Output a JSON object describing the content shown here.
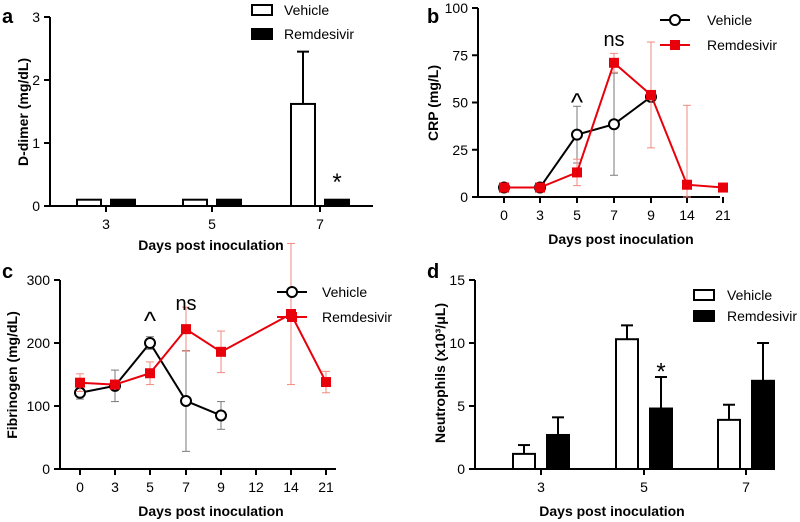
{
  "colors": {
    "vehicle": "#000000",
    "remdesivir": "#e8000b",
    "axis": "#000000"
  },
  "chart_data": [
    {
      "panel": "a",
      "type": "bar",
      "ylabel": "D-dimer (mg/dL)",
      "xlabel": "Days post inoculation",
      "categories": [
        "3",
        "5",
        "7"
      ],
      "ylim": [
        0,
        3
      ],
      "yticks": [
        "0",
        "1",
        "2",
        "3"
      ],
      "series": [
        {
          "name": "Vehicle",
          "fill": "white",
          "values": [
            0.1,
            0.1,
            1.62
          ],
          "errors": [
            0,
            0,
            0.83
          ]
        },
        {
          "name": "Remdesivir",
          "fill": "black",
          "values": [
            0.1,
            0.1,
            0.1
          ],
          "errors": [
            0,
            0,
            0
          ]
        }
      ],
      "annotations": [
        {
          "text": "*",
          "category": 2,
          "series": 1,
          "y": 0.48
        }
      ]
    },
    {
      "panel": "b",
      "type": "line",
      "ylabel": "CRP (mg/L)",
      "xlabel": "Days post inoculation",
      "categories": [
        "0",
        "3",
        "5",
        "7",
        "9",
        "14",
        "21"
      ],
      "ylim": [
        0,
        100
      ],
      "yticks": [
        "0",
        "25",
        "50",
        "75",
        "100"
      ],
      "series": [
        {
          "name": "Vehicle",
          "marker": "circle",
          "points": [
            [
              0,
              5,
              0
            ],
            [
              1,
              5,
              0
            ],
            [
              2,
              33,
              15
            ],
            [
              3,
              38.5,
              27
            ],
            [
              4,
              53,
              0
            ]
          ]
        },
        {
          "name": "Remdesivir",
          "marker": "square",
          "points": [
            [
              0,
              5,
              0
            ],
            [
              1,
              5,
              0
            ],
            [
              2,
              13,
              7
            ],
            [
              3,
              71,
              5
            ],
            [
              4,
              54,
              28
            ],
            [
              5,
              6.5,
              42
            ],
            [
              6,
              5,
              0
            ]
          ]
        }
      ],
      "annotations": [
        {
          "text": "^",
          "x": 2,
          "y": 55
        },
        {
          "text": "ns",
          "x": 3,
          "y": 83
        }
      ]
    },
    {
      "panel": "c",
      "type": "line",
      "ylabel": "Fibrinogen (mg/dL)",
      "xlabel": "Days post inoculation",
      "categories": [
        "0",
        "3",
        "5",
        "7",
        "9",
        "12",
        "14",
        "21"
      ],
      "ylim": [
        0,
        300
      ],
      "yticks": [
        "0",
        "100",
        "200",
        "300"
      ],
      "series": [
        {
          "name": "Vehicle",
          "marker": "circle",
          "points": [
            [
              0,
              121,
              10
            ],
            [
              1,
              132,
              25
            ],
            [
              2,
              200,
              10
            ],
            [
              3,
              108,
              80
            ],
            [
              4,
              85,
              22
            ]
          ]
        },
        {
          "name": "Remdesivir",
          "marker": "square",
          "points": [
            [
              0,
              137,
              14
            ],
            [
              1,
              134,
              5
            ],
            [
              2,
              152,
              18
            ],
            [
              3,
              222,
              35
            ],
            [
              4,
              186,
              33
            ],
            [
              6,
              246,
              112
            ],
            [
              7,
              138,
              17
            ]
          ]
        }
      ],
      "annotations": [
        {
          "text": "^",
          "x": 2,
          "y": 250
        },
        {
          "text": "ns",
          "x": 3,
          "y": 262
        }
      ]
    },
    {
      "panel": "d",
      "type": "bar",
      "ylabel": "Neutrophils (x10³/μL)",
      "xlabel": "Days post inoculation",
      "categories": [
        "3",
        "5",
        "7"
      ],
      "ylim": [
        0,
        15
      ],
      "yticks": [
        "0",
        "5",
        "10",
        "15"
      ],
      "series": [
        {
          "name": "Vehicle",
          "fill": "white",
          "values": [
            1.2,
            10.3,
            3.9
          ],
          "errors": [
            0.7,
            1.1,
            1.2
          ]
        },
        {
          "name": "Remdesivir",
          "fill": "black",
          "values": [
            2.7,
            4.8,
            7.0
          ],
          "errors": [
            1.4,
            2.5,
            3.0
          ]
        }
      ],
      "annotations": [
        {
          "text": "*",
          "category": 1,
          "series": 1,
          "y": 8.2
        }
      ]
    }
  ]
}
